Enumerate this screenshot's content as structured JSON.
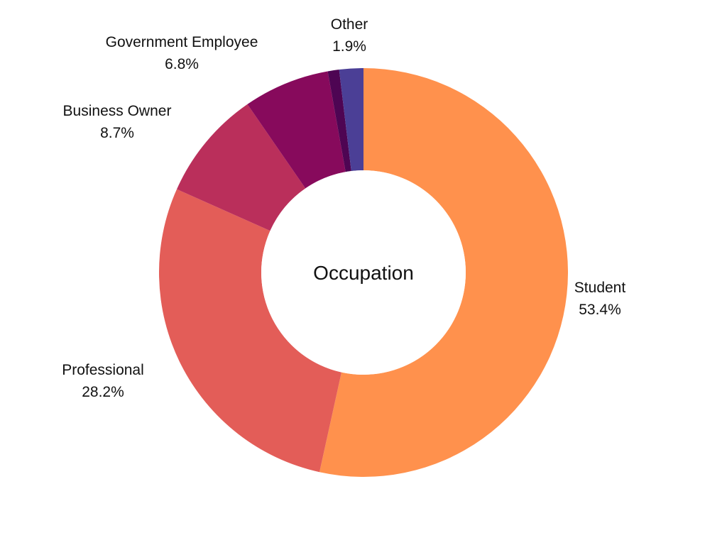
{
  "chart_data": {
    "type": "pie",
    "style": "donut",
    "center_label": "Occupation",
    "start": "top",
    "direction": "clockwise",
    "slices": [
      {
        "label": "Student",
        "value": 53.4,
        "display": "53.4%",
        "color": "#FF914D"
      },
      {
        "label": "Professional",
        "value": 28.2,
        "display": "28.2%",
        "color": "#E35D58"
      },
      {
        "label": "Business Owner",
        "value": 8.7,
        "display": "8.7%",
        "color": "#BA2F5B"
      },
      {
        "label": "Government Employee",
        "value": 6.8,
        "display": "6.8%",
        "color": "#870A5C"
      },
      {
        "label": "",
        "value": 0.9,
        "display": "",
        "color": "#4E0553"
      },
      {
        "label": "Other",
        "value": 1.9,
        "display": "1.9%",
        "color": "#4B3F96"
      }
    ]
  }
}
